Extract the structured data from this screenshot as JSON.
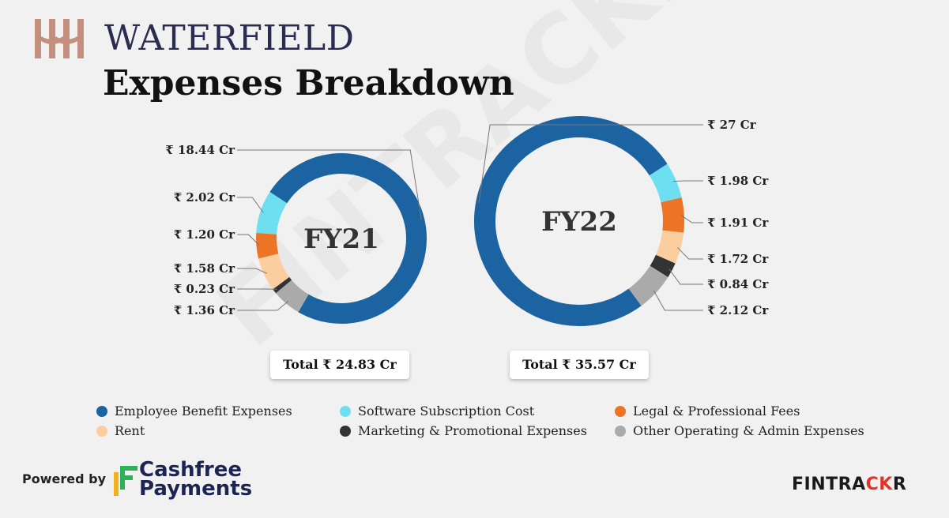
{
  "brand": {
    "name": "WATERFIELD"
  },
  "title": "Expenses Breakdown",
  "colors": {
    "employee": "#1c63a2",
    "software": "#6edff1",
    "legal": "#ec7424",
    "rent": "#fbcea0",
    "marketing": "#333333",
    "other": "#aaaaaa"
  },
  "chart_data": [
    {
      "type": "pie",
      "subtype": "donut",
      "center_label": "FY21",
      "categories": [
        "Employee Benefit Expenses",
        "Software Subscription Cost",
        "Legal & Professional Fees",
        "Rent",
        "Marketing & Promotional Expenses",
        "Other Operating & Admin Expenses"
      ],
      "values": [
        18.44,
        2.02,
        1.2,
        1.58,
        0.23,
        1.36
      ],
      "value_labels": [
        "₹ 18.44 Cr",
        "₹ 2.02 Cr",
        "₹ 1.20 Cr",
        "₹ 1.58 Cr",
        "₹ 0.23 Cr",
        "₹ 1.36 Cr"
      ],
      "total_label": "Total ₹ 24.83 Cr"
    },
    {
      "type": "pie",
      "subtype": "donut",
      "center_label": "FY22",
      "categories": [
        "Employee Benefit Expenses",
        "Software Subscription Cost",
        "Legal & Professional Fees",
        "Rent",
        "Marketing & Promotional Expenses",
        "Other Operating & Admin Expenses"
      ],
      "values": [
        27,
        1.98,
        1.91,
        1.72,
        0.84,
        2.12
      ],
      "value_labels": [
        "₹ 27 Cr",
        "₹ 1.98 Cr",
        "₹ 1.91 Cr",
        "₹ 1.72 Cr",
        "₹ 0.84 Cr",
        "₹ 2.12 Cr"
      ],
      "total_label": "Total ₹ 35.57 Cr"
    }
  ],
  "legend": [
    {
      "label": "Employee Benefit Expenses",
      "color": "#1c63a2"
    },
    {
      "label": "Software Subscription Cost",
      "color": "#6edff1"
    },
    {
      "label": "Legal & Professional Fees",
      "color": "#ec7424"
    },
    {
      "label": "Rent",
      "color": "#fbcea0"
    },
    {
      "label": "Marketing & Promotional Expenses",
      "color": "#333333"
    },
    {
      "label": "Other Operating & Admin Expenses",
      "color": "#aaaaaa"
    }
  ],
  "footer": {
    "powered_by": "Powered by",
    "sponsor_line1": "Cashfree",
    "sponsor_line2": "Payments",
    "publisher_part1": "FINTRA",
    "publisher_part2": "CK",
    "publisher_part3": "R"
  }
}
